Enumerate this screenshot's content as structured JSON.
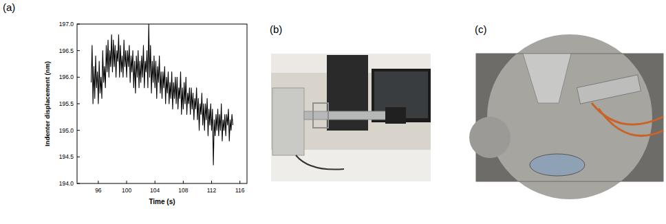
{
  "panel_labels": [
    "(a)",
    "(b)",
    "(c)"
  ],
  "chart_data": {
    "type": "line",
    "x_label": "Time (s)",
    "y_label": "Indenter displacement (nm)",
    "color": "#000000",
    "grid": false,
    "xlim": [
      93,
      117
    ],
    "ylim": [
      194,
      197
    ],
    "xticks": [
      96,
      100,
      104,
      108,
      112,
      116
    ],
    "yticks": [
      {
        "value": 194,
        "label": "194.0"
      },
      {
        "value": 194.5,
        "label": "194.5"
      },
      {
        "value": 195,
        "label": "195.0"
      },
      {
        "value": 195.5,
        "label": "195.5"
      },
      {
        "value": 196,
        "label": "196.0"
      },
      {
        "value": 196.5,
        "label": "196.5"
      },
      {
        "value": 197,
        "label": "197.0"
      }
    ],
    "x": [
      95,
      95.125,
      95.25,
      95.375,
      95.5,
      95.625,
      95.75,
      95.875,
      96,
      96.125,
      96.25,
      96.375,
      96.5,
      96.625,
      96.75,
      96.875,
      97,
      97.125,
      97.25,
      97.375,
      97.5,
      97.625,
      97.75,
      97.875,
      98,
      98.125,
      98.25,
      98.375,
      98.5,
      98.625,
      98.75,
      98.875,
      99,
      99.125,
      99.25,
      99.375,
      99.5,
      99.625,
      99.75,
      99.875,
      100,
      100.125,
      100.25,
      100.375,
      100.5,
      100.625,
      100.75,
      100.875,
      101,
      101.125,
      101.25,
      101.375,
      101.5,
      101.625,
      101.75,
      101.875,
      102,
      102.125,
      102.25,
      102.375,
      102.5,
      102.625,
      102.75,
      102.875,
      103,
      103.125,
      103.25,
      103.375,
      103.5,
      103.625,
      103.75,
      103.875,
      104,
      104.125,
      104.25,
      104.375,
      104.5,
      104.625,
      104.75,
      104.875,
      105,
      105.125,
      105.25,
      105.375,
      105.5,
      105.625,
      105.75,
      105.875,
      106,
      106.125,
      106.25,
      106.375,
      106.5,
      106.625,
      106.75,
      106.875,
      107,
      107.125,
      107.25,
      107.375,
      107.5,
      107.625,
      107.75,
      107.875,
      108,
      108.125,
      108.25,
      108.375,
      108.5,
      108.625,
      108.75,
      108.875,
      109,
      109.125,
      109.25,
      109.375,
      109.5,
      109.625,
      109.75,
      109.875,
      110,
      110.125,
      110.25,
      110.375,
      110.5,
      110.625,
      110.75,
      110.875,
      111,
      111.125,
      111.25,
      111.375,
      111.5,
      111.625,
      111.75,
      111.875,
      112,
      112.125,
      112.25,
      112.375,
      112.5,
      112.625,
      112.75,
      112.875,
      113,
      113.125,
      113.25,
      113.375,
      113.5,
      113.625,
      113.75,
      113.875,
      114,
      114.125,
      114.25,
      114.375,
      114.5,
      114.625,
      114.75,
      114.875,
      115
    ],
    "values": [
      195.9,
      196.6,
      195.5,
      196.2,
      195.6,
      196.4,
      195.8,
      196.1,
      195.5,
      196.3,
      195.7,
      196.0,
      195.6,
      196.5,
      195.9,
      196.2,
      195.8,
      196.6,
      196.1,
      196.7,
      196.0,
      196.5,
      196.2,
      196.8,
      196.1,
      196.7,
      196.2,
      196.6,
      196.0,
      196.5,
      196.3,
      196.8,
      196.0,
      196.6,
      196.1,
      196.4,
      196.0,
      196.7,
      196.2,
      196.5,
      196.0,
      196.5,
      196.2,
      196.6,
      195.9,
      196.4,
      196.1,
      196.5,
      195.8,
      196.3,
      195.7,
      196.4,
      196.0,
      196.5,
      195.8,
      196.3,
      195.9,
      196.4,
      196.0,
      196.6,
      195.8,
      196.3,
      196.1,
      196.5,
      195.8,
      197.0,
      196.0,
      196.6,
      195.7,
      196.3,
      195.9,
      196.4,
      195.8,
      196.3,
      195.6,
      196.2,
      195.9,
      196.4,
      195.7,
      196.1,
      195.6,
      196.1,
      195.8,
      196.2,
      195.5,
      196.0,
      195.7,
      196.1,
      195.5,
      195.9,
      195.6,
      196.1,
      195.4,
      195.9,
      195.6,
      196.0,
      195.5,
      196.0,
      195.4,
      195.8,
      195.6,
      196.1,
      195.3,
      195.8,
      195.4,
      195.9,
      195.5,
      196.0,
      195.3,
      195.7,
      195.5,
      195.8,
      195.3,
      195.8,
      195.4,
      195.7,
      195.2,
      195.6,
      195.4,
      195.8,
      195.2,
      195.6,
      195.0,
      195.5,
      195.3,
      195.7,
      195.1,
      195.5,
      195.0,
      195.5,
      195.2,
      195.6,
      194.9,
      195.4,
      195.1,
      195.5,
      195.0,
      195.4,
      194.35,
      195.2,
      194.9,
      195.3,
      195.0,
      195.4,
      194.9,
      195.3,
      195.0,
      195.5,
      194.8,
      195.2,
      195.0,
      195.3,
      194.9,
      195.3,
      195.1,
      195.4,
      194.8,
      195.2,
      195.0,
      195.3,
      195.1
    ]
  }
}
